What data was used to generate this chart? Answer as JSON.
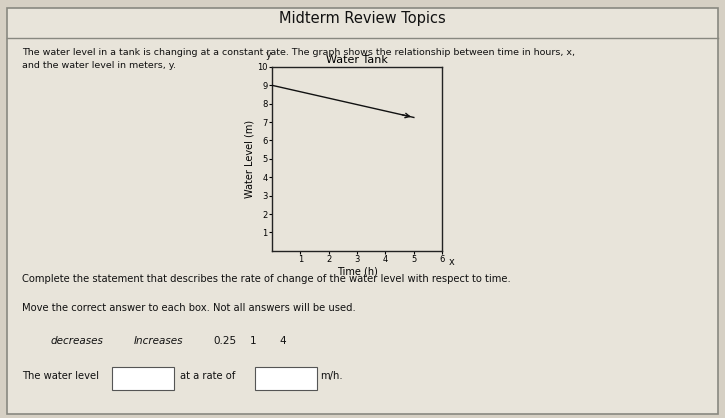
{
  "title": "Midterm Review Topics",
  "description_line1": "The water level in a tank is changing at a constant rate. The graph shows the relationship between time in hours, x,",
  "description_line2": "and the water level in meters, y.",
  "graph_title": "Water Tank",
  "xlabel": "Time (h)",
  "ylabel": "Water Level (m)",
  "x_data": [
    0,
    5
  ],
  "y_data": [
    9,
    7.25
  ],
  "xlim": [
    0,
    6
  ],
  "ylim": [
    0,
    10
  ],
  "xticks": [
    1,
    2,
    3,
    4,
    5,
    6
  ],
  "yticks": [
    1,
    2,
    3,
    4,
    5,
    6,
    7,
    8,
    9,
    10
  ],
  "line_color": "#111111",
  "bg_color": "#d6d0c4",
  "paper_color": "#e8e4da",
  "complete_statement": "Complete the statement that describes the rate of change of the water level with respect to time.",
  "move_instruction": "Move the correct answer to each box. Not all answers will be used.",
  "word_options": [
    "decreases",
    "Increases",
    "0.25",
    "1",
    "4"
  ],
  "fill_statement_prefix": "The water level",
  "fill_statement_suffix": "at a rate of",
  "fill_statement_end": "m/h."
}
